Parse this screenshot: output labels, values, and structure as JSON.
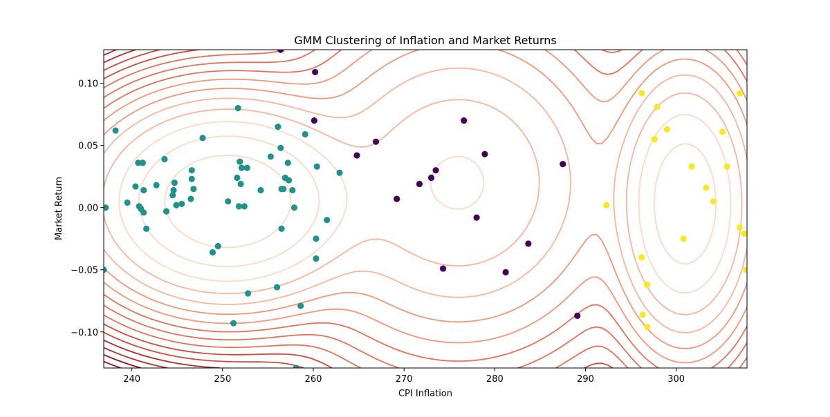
{
  "chart_data": {
    "type": "scatter",
    "title": "GMM Clustering of Inflation and Market Returns",
    "xlabel": "CPI Inflation",
    "ylabel": "Market Return",
    "xlim": [
      236.9,
      307.8
    ],
    "ylim": [
      -0.129,
      0.127
    ],
    "grid": false,
    "legend": "none",
    "x_ticks": [
      240,
      250,
      260,
      270,
      280,
      290,
      300
    ],
    "x_tick_labels": [
      "240",
      "250",
      "260",
      "270",
      "280",
      "290",
      "300"
    ],
    "y_ticks": [
      -0.1,
      -0.05,
      0.0,
      0.05,
      0.1
    ],
    "y_tick_labels": [
      "−0.10",
      "−0.05",
      "0.00",
      "0.05",
      "0.10"
    ],
    "contour_colormap": [
      "#fcd9c8",
      "#f8b59b",
      "#f2967a",
      "#e3715a",
      "#cf4a3e",
      "#b02b2d",
      "#8c1020"
    ],
    "components": [
      {
        "mean_x": 250.5,
        "mean_y": 0.005,
        "sd_x": 6.5,
        "sd_y": 0.035,
        "weight": 0.55
      },
      {
        "mean_x": 301.0,
        "mean_y": 0.003,
        "sd_x": 3.5,
        "sd_y": 0.05,
        "weight": 0.22
      },
      {
        "mean_x": 276.0,
        "mean_y": 0.02,
        "sd_x": 8.0,
        "sd_y": 0.06,
        "weight": 0.23
      }
    ],
    "series": [
      {
        "color": "#21918c",
        "points": [
          [
            238.2,
            0.062
          ],
          [
            237.1,
            0.0
          ],
          [
            239.5,
            0.004
          ],
          [
            240.4,
            0.017
          ],
          [
            240.7,
            0.036
          ],
          [
            240.8,
            0.001
          ],
          [
            241.0,
            -0.001
          ],
          [
            241.2,
            0.036
          ],
          [
            241.3,
            0.014
          ],
          [
            241.3,
            -0.004
          ],
          [
            241.6,
            -0.017
          ],
          [
            242.7,
            0.018
          ],
          [
            243.6,
            0.039
          ],
          [
            243.8,
            -0.003
          ],
          [
            244.5,
            0.01
          ],
          [
            244.6,
            0.014
          ],
          [
            244.7,
            0.02
          ],
          [
            244.9,
            0.002
          ],
          [
            245.5,
            0.003
          ],
          [
            246.5,
            0.007
          ],
          [
            246.6,
            0.03
          ],
          [
            246.6,
            0.023
          ],
          [
            246.8,
            0.015
          ],
          [
            247.8,
            0.056
          ],
          [
            248.9,
            -0.036
          ],
          [
            249.5,
            -0.031
          ],
          [
            250.6,
            0.005
          ],
          [
            251.2,
            -0.093
          ],
          [
            251.6,
            0.024
          ],
          [
            251.7,
            0.08
          ],
          [
            251.8,
            0.001
          ],
          [
            251.9,
            0.037
          ],
          [
            252.0,
            0.019
          ],
          [
            252.1,
            0.032
          ],
          [
            252.4,
            0.001
          ],
          [
            252.7,
            0.032
          ],
          [
            252.8,
            -0.069
          ],
          [
            254.2,
            0.014
          ],
          [
            255.3,
            0.041
          ],
          [
            256.0,
            -0.064
          ],
          [
            256.1,
            0.065
          ],
          [
            256.4,
            0.048
          ],
          [
            256.5,
            0.015
          ],
          [
            256.5,
            -0.017
          ],
          [
            256.7,
            0.015
          ],
          [
            256.9,
            0.024
          ],
          [
            257.2,
            0.036
          ],
          [
            257.3,
            0.022
          ],
          [
            257.7,
            0.014
          ],
          [
            257.9,
            0.0
          ],
          [
            258.1,
            -0.129
          ],
          [
            258.6,
            -0.079
          ],
          [
            259.1,
            0.059
          ],
          [
            260.3,
            -0.025
          ],
          [
            260.3,
            -0.041
          ],
          [
            260.4,
            0.033
          ],
          [
            261.5,
            -0.01
          ],
          [
            262.9,
            0.028
          ],
          [
            236.9,
            -0.05
          ]
        ]
      },
      {
        "color": "#440154",
        "points": [
          [
            256.4,
            0.127
          ],
          [
            260.1,
            0.07
          ],
          [
            260.2,
            0.109
          ],
          [
            264.8,
            0.042
          ],
          [
            266.9,
            0.053
          ],
          [
            269.2,
            0.007
          ],
          [
            271.7,
            0.019
          ],
          [
            273.0,
            0.024
          ],
          [
            273.5,
            0.03
          ],
          [
            274.3,
            -0.049
          ],
          [
            276.6,
            0.07
          ],
          [
            278.0,
            -0.008
          ],
          [
            278.9,
            0.043
          ],
          [
            281.2,
            -0.052
          ],
          [
            283.7,
            -0.029
          ],
          [
            287.5,
            0.035
          ],
          [
            289.1,
            -0.087
          ]
        ]
      },
      {
        "color": "#fde725",
        "points": [
          [
            292.3,
            0.002
          ],
          [
            296.2,
            0.092
          ],
          [
            296.2,
            -0.04
          ],
          [
            296.3,
            -0.086
          ],
          [
            296.8,
            -0.062
          ],
          [
            296.8,
            -0.096
          ],
          [
            297.6,
            0.055
          ],
          [
            297.9,
            0.081
          ],
          [
            299.0,
            0.063
          ],
          [
            300.8,
            -0.025
          ],
          [
            301.7,
            0.033
          ],
          [
            303.3,
            0.016
          ],
          [
            304.1,
            0.005
          ],
          [
            305.1,
            0.061
          ],
          [
            305.6,
            0.033
          ],
          [
            307.0,
            0.092
          ],
          [
            307.0,
            -0.016
          ],
          [
            307.5,
            -0.021
          ],
          [
            307.7,
            -0.05
          ]
        ]
      }
    ]
  }
}
